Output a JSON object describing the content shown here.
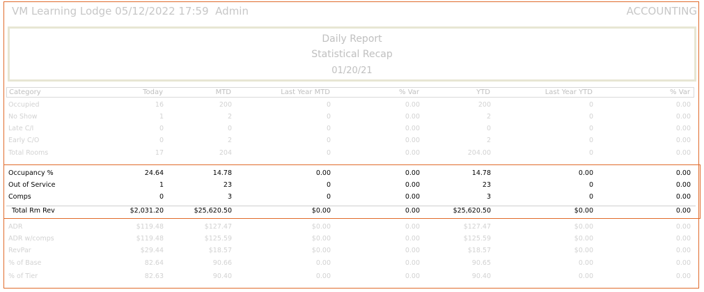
{
  "topbar": {
    "title": "VM Learning Lodge 05/12/2022 17:59",
    "user": "Admin",
    "module": "ACCOUNTING"
  },
  "report": {
    "name": "Daily Report",
    "subtitle": "Statistical Recap",
    "date": "01/20/21"
  },
  "columns": [
    "Category",
    "Today",
    "MTD",
    "Last Year MTD",
    "% Var",
    "YTD",
    "Last Year YTD",
    "% Var"
  ],
  "rows": [
    {
      "category": "Occupied",
      "values": [
        "16",
        "200",
        "0",
        "0.00",
        "200",
        "0",
        "0.00"
      ],
      "highlight": false
    },
    {
      "category": "No Show",
      "values": [
        "1",
        "2",
        "0",
        "0.00",
        "2",
        "0",
        "0.00"
      ],
      "highlight": false
    },
    {
      "category": "Late C/I",
      "values": [
        "0",
        "0",
        "0",
        "0.00",
        "0",
        "0",
        "0.00"
      ],
      "highlight": false
    },
    {
      "category": "Early C/O",
      "values": [
        "0",
        "2",
        "0",
        "0.00",
        "2",
        "0",
        "0.00"
      ],
      "highlight": false
    },
    {
      "category": "Total Rooms",
      "values": [
        "17",
        "204",
        "0",
        "0.00",
        "204.00",
        "0",
        "0.00"
      ],
      "highlight": false
    },
    {
      "category": "Occupancy %",
      "values": [
        "24.64",
        "14.78",
        "0.00",
        "0.00",
        "14.78",
        "0.00",
        "0.00"
      ],
      "highlight": true
    },
    {
      "category": "Out of Service",
      "values": [
        "1",
        "23",
        "0",
        "0.00",
        "23",
        "0",
        "0.00"
      ],
      "highlight": true
    },
    {
      "category": "Comps",
      "values": [
        "0",
        "3",
        "0",
        "0.00",
        "3",
        "0",
        "0.00"
      ],
      "highlight": true
    },
    {
      "category": "Total Rm Rev",
      "values": [
        "$2,031.20",
        "$25,620.50",
        "$0.00",
        "0.00",
        "$25,620.50",
        "$0.00",
        "0.00"
      ],
      "highlight": true
    },
    {
      "category": "ADR",
      "values": [
        "$119.48",
        "$127.47",
        "$0.00",
        "0.00",
        "$127.47",
        "$0.00",
        "0.00"
      ],
      "highlight": false
    },
    {
      "category": "ADR w/comps",
      "values": [
        "$119.48",
        "$125.59",
        "$0.00",
        "0.00",
        "$125.59",
        "$0.00",
        "0.00"
      ],
      "highlight": false
    },
    {
      "category": "RevPar",
      "values": [
        "$29.44",
        "$18.57",
        "$0.00",
        "0.00",
        "$18.57",
        "$0.00",
        "0.00"
      ],
      "highlight": false
    },
    {
      "category": "% of Base",
      "values": [
        "82.64",
        "90.66",
        "0.00",
        "0.00",
        "90.65",
        "0.00",
        "0.00"
      ],
      "highlight": false
    },
    {
      "category": "% of Tier",
      "values": [
        "82.63",
        "90.40",
        "0.00",
        "0.00",
        "90.40",
        "0.00",
        "0.00"
      ],
      "highlight": false
    }
  ],
  "colors": {
    "accent_border": "#e06a2a",
    "faded_text": "#d2d2d2",
    "dark_text": "#000000"
  }
}
